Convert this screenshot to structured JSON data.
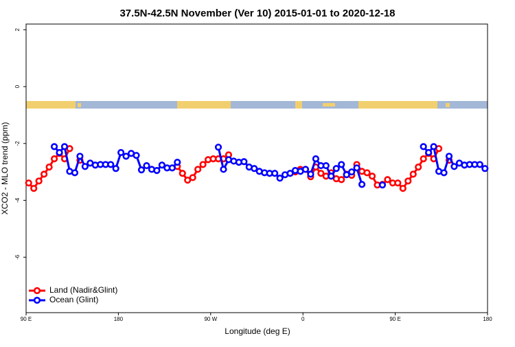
{
  "chart_data": {
    "type": "line",
    "title": "37.5N-42.5N November (Ver 10)   2015-01-01 to 2020-12-18",
    "x_label": "Longitude (deg E)",
    "y_label": "XCO2 - MLO trend (ppm)",
    "xlim": [
      90,
      540
    ],
    "xticks": [
      {
        "value": 90,
        "label": "90 E"
      },
      180,
      {
        "value": 270,
        "label": "90 W"
      },
      {
        "value": 360,
        "label": "0"
      },
      {
        "value": 450,
        "label": "90 E"
      },
      {
        "value": 540,
        "label": "180"
      }
    ],
    "ylim": [
      -7.95,
      2.2
    ],
    "yticks": [
      -6,
      -4,
      -2,
      0,
      2
    ],
    "legend": "bottom-left",
    "x": [
      92.5,
      97.5,
      102.5,
      107.5,
      112.5,
      117.5,
      122.5,
      127.5,
      132.5,
      137.5,
      142.5,
      147.5,
      152.5,
      157.5,
      162.5,
      167.5,
      172.5,
      177.5,
      182.5,
      187.5,
      192.5,
      197.5,
      202.5,
      207.5,
      212.5,
      217.5,
      222.5,
      227.5,
      232.5,
      237.5,
      242.5,
      247.5,
      252.5,
      257.5,
      262.5,
      267.5,
      272.5,
      277.5,
      282.5,
      287.5,
      292.5,
      297.5,
      302.5,
      307.5,
      312.5,
      317.5,
      322.5,
      327.5,
      332.5,
      337.5,
      342.5,
      347.5,
      352.5,
      357.5,
      362.5,
      367.5,
      372.5,
      377.5,
      382.5,
      387.5,
      392.5,
      397.5,
      402.5,
      407.5,
      412.5,
      417.5,
      422.5,
      427.5,
      432.5,
      437.5,
      442.5,
      447.5,
      452.5,
      457.5,
      462.5,
      467.5,
      472.5,
      477.5,
      482.5,
      487.5,
      492.5,
      497.5,
      502.5,
      507.5,
      512.5,
      517.5,
      522.5,
      527.5,
      532.5,
      537.5
    ],
    "series": [
      {
        "name": "Land (Nadir&Glint)",
        "color": "#ff0000",
        "values": [
          -3.39,
          -3.58,
          -3.32,
          -3.08,
          -2.83,
          -2.54,
          -2.35,
          -2.54,
          -2.18,
          null,
          -2.59,
          null,
          null,
          null,
          null,
          null,
          null,
          null,
          null,
          null,
          null,
          null,
          null,
          null,
          null,
          null,
          null,
          null,
          null,
          -2.81,
          -3.05,
          -3.29,
          -3.2,
          -2.91,
          -2.74,
          -2.57,
          -2.54,
          -2.54,
          -2.54,
          -2.4,
          null,
          null,
          null,
          null,
          null,
          null,
          null,
          null,
          null,
          null,
          null,
          null,
          -3.0,
          -2.91,
          -2.91,
          -3.17,
          -2.83,
          -3.05,
          -3.15,
          -3.03,
          -3.24,
          -3.27,
          -3.08,
          -3.12,
          -2.74,
          -2.98,
          -3.03,
          -3.15,
          -3.46,
          -3.44,
          -3.27,
          -3.39,
          -3.39,
          -3.58,
          -3.32,
          -3.08,
          -2.83,
          -2.54,
          -2.35,
          -2.54,
          -2.18,
          null,
          -2.59,
          null,
          null,
          null,
          null,
          null,
          null,
          null
        ]
      },
      {
        "name": "Ocean (Glint)",
        "color": "#0000ff",
        "values": [
          null,
          null,
          null,
          null,
          null,
          -2.11,
          -2.32,
          -2.11,
          -2.98,
          -3.03,
          -2.45,
          -2.81,
          -2.69,
          -2.76,
          -2.74,
          -2.74,
          -2.74,
          -2.88,
          -2.32,
          -2.45,
          -2.35,
          -2.42,
          -2.93,
          -2.78,
          -2.91,
          -2.95,
          -2.76,
          -2.86,
          -2.86,
          -2.66,
          null,
          null,
          null,
          null,
          null,
          null,
          null,
          -2.13,
          -2.91,
          -2.57,
          -2.62,
          -2.66,
          -2.64,
          -2.83,
          -2.88,
          -2.98,
          -3.03,
          -3.05,
          -3.05,
          -3.22,
          -3.1,
          -3.05,
          -2.95,
          -2.98,
          -2.91,
          -3.08,
          -2.54,
          -2.78,
          -2.78,
          -3.15,
          -2.88,
          -2.74,
          -3.1,
          -3.0,
          -2.86,
          -3.44,
          null,
          null,
          null,
          -3.46,
          null,
          null,
          null,
          null,
          null,
          null,
          null,
          -2.11,
          -2.32,
          -2.11,
          -2.98,
          -3.03,
          -2.45,
          -2.81,
          -2.69,
          -2.76,
          -2.74,
          -2.74,
          -2.74,
          -2.88
        ]
      }
    ]
  }
}
